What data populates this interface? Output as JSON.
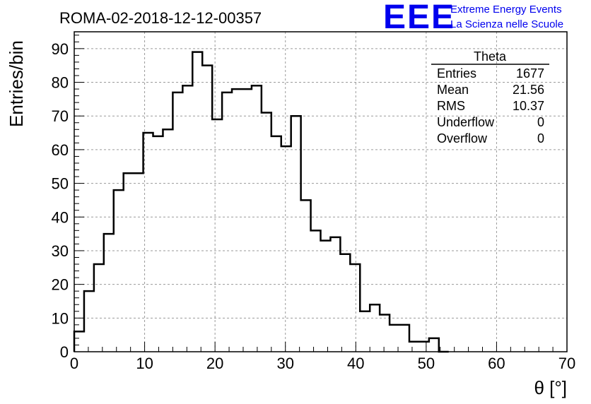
{
  "title": "ROMA-02-2018-12-12-00357",
  "logo": {
    "mark": "EEE",
    "line1": "Extreme Energy Events",
    "line2": "La Scienza nelle Scuole",
    "color": "#0000ee"
  },
  "stats": {
    "name": "Theta",
    "rows": [
      {
        "label": "Entries",
        "value": "1677"
      },
      {
        "label": "Mean",
        "value": "21.56"
      },
      {
        "label": "RMS",
        "value": "10.37"
      },
      {
        "label": "Underflow",
        "value": "0"
      },
      {
        "label": "Overflow",
        "value": "0"
      }
    ]
  },
  "chart_data": {
    "type": "bar",
    "style": "step-histogram",
    "xlabel": "θ [°]",
    "ylabel": "Entries/bin",
    "xlim": [
      0,
      70
    ],
    "ylim": [
      0,
      95
    ],
    "grid": true,
    "bin_width": 1.4,
    "xticks": [
      0,
      10,
      20,
      30,
      40,
      50,
      60,
      70
    ],
    "yticks": [
      0,
      10,
      20,
      30,
      40,
      50,
      60,
      70,
      80,
      90
    ],
    "bin_start": [
      0,
      1.4,
      2.8,
      4.2,
      5.6,
      7.0,
      8.4,
      9.8,
      11.2,
      12.6,
      14.0,
      15.4,
      16.8,
      18.2,
      19.6,
      21.0,
      22.4,
      23.8,
      25.2,
      26.6,
      28.0,
      29.4,
      30.8,
      32.2,
      33.6,
      35.0,
      36.4,
      37.8,
      39.2,
      40.6,
      42.0,
      43.4,
      44.8,
      46.2,
      47.6,
      49.0,
      50.4,
      51.8
    ],
    "values": [
      6,
      18,
      26,
      35,
      48,
      53,
      53,
      65,
      64,
      66,
      77,
      79,
      89,
      85,
      69,
      77,
      78,
      78,
      79,
      71,
      64,
      61,
      70,
      45,
      36,
      33,
      34,
      29,
      26,
      12,
      14,
      11,
      8,
      8,
      3,
      3,
      4,
      0
    ]
  }
}
